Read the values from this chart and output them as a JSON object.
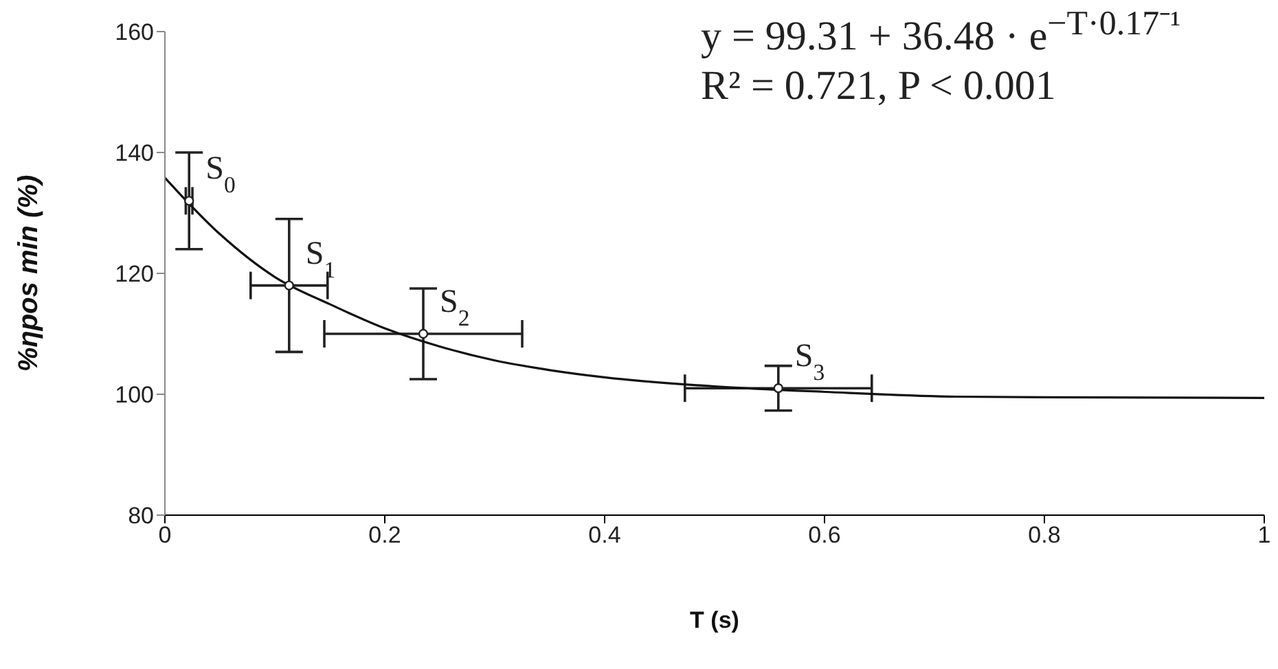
{
  "chart_data": {
    "type": "scatter",
    "xlabel": "T (s)",
    "ylabel": "%ηpos min (%)",
    "xlim": [
      0,
      1
    ],
    "xticks": [
      0,
      0.2,
      0.4,
      0.6,
      0.8,
      1
    ],
    "ylim": [
      80,
      160
    ],
    "yticks": [
      80,
      100,
      120,
      140,
      160
    ],
    "grid": false,
    "legend": false,
    "series": [
      {
        "marker": "circle",
        "color": "#222222",
        "x": [
          0.022,
          0.113,
          0.235,
          0.558
        ],
        "values": [
          132,
          118,
          110,
          101
        ],
        "errors": [
          8,
          11,
          7.5,
          3.7
        ],
        "xerrors": [
          0.003,
          0.035,
          0.09,
          0.085
        ]
      },
      {
        "type": "line",
        "color": "#111111",
        "x": [
          0,
          0.05,
          0.1,
          0.15,
          0.2,
          0.25,
          0.3,
          0.35,
          0.4,
          0.5,
          0.6,
          0.72,
          0.8,
          1
        ],
        "values": [
          135.8,
          126.5,
          119.4,
          114.9,
          110.9,
          107.9,
          105.6,
          104,
          102.8,
          101.3,
          100.4,
          99.6,
          99.5,
          99.4
        ]
      }
    ],
    "annotations": [
      {
        "text": "S$_{0}$",
        "x": 0.022,
        "y": 132
      },
      {
        "text": "S$_{1}$",
        "x": 0.113,
        "y": 118
      },
      {
        "text": "S$_{2}$",
        "x": 0.235,
        "y": 110
      },
      {
        "text": "S$_{3}$",
        "x": 0.558,
        "y": 101
      },
      "y = 99.31 + 36.48 · e$^{−T·0.17⁻¹}$",
      "R² = 0.721, P < 0.001"
    ]
  }
}
